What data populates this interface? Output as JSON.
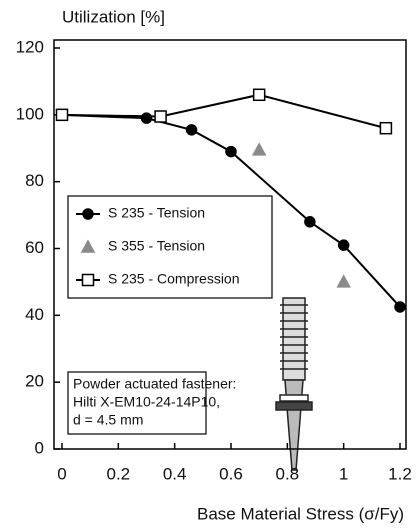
{
  "chart_data": {
    "type": "line",
    "y_label": "Utilization [%]",
    "x_label": "Base Material Stress (σ/Fy)",
    "xlim": [
      0,
      1.2
    ],
    "xticks": [
      0,
      0.2,
      0.4,
      0.6,
      0.8,
      1,
      1.2
    ],
    "ylim": [
      0,
      120
    ],
    "yticks": [
      0,
      20,
      40,
      60,
      80,
      100,
      120
    ],
    "grid": false,
    "series": [
      {
        "name": "S 235 - Tension",
        "color": "#000000",
        "marker": "circle",
        "line": true,
        "x": [
          0,
          0.3,
          0.46,
          0.6,
          0.88,
          1.0,
          1.2
        ],
        "values": [
          100,
          99,
          95.5,
          89,
          68,
          61,
          42.5
        ]
      },
      {
        "name": "S 355 - Tension",
        "color": "#8a8a8a",
        "marker": "triangle",
        "line": false,
        "x": [
          0.7,
          1.0
        ],
        "values": [
          89.5,
          50
        ]
      },
      {
        "name": "S 235 - Compression",
        "color": "#000000",
        "marker": "square",
        "line": true,
        "x": [
          0,
          0.35,
          0.7,
          1.15
        ],
        "values": [
          100,
          99.5,
          106,
          96
        ]
      }
    ],
    "annotation": [
      "Powder actuated fastener:",
      "Hilti X-EM10-24-14P10,",
      "d = 4.5 mm"
    ]
  }
}
